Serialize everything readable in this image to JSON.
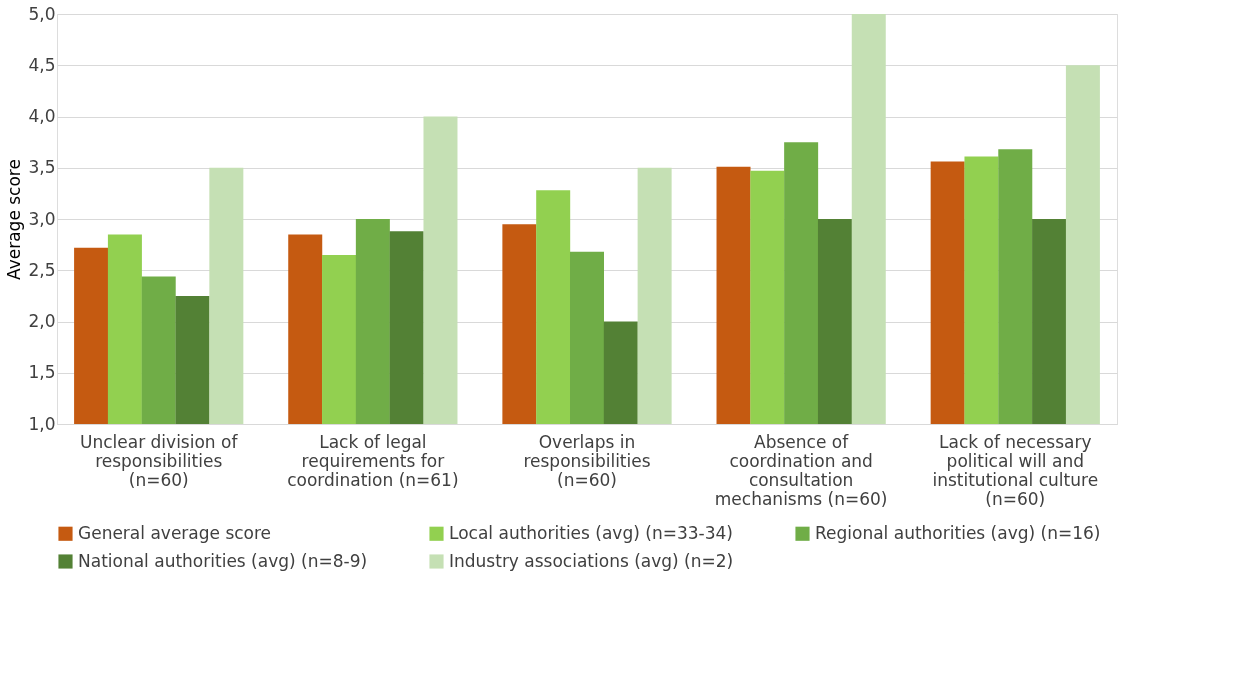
{
  "chart_data": {
    "type": "bar",
    "ylabel": "Average score",
    "categories": [
      "Unclear division of responsibilities (n=60)",
      "Lack of legal requirements for coordination (n=61)",
      "Overlaps in responsibilities (n=60)",
      "Absence of coordination and consultation mechanisms (n=60)",
      "Lack of necessary political will and institutional culture (n=60)"
    ],
    "series": [
      {
        "name": "General average score",
        "color": "#c55a11",
        "values": [
          2.72,
          2.85,
          2.95,
          3.51,
          3.56
        ]
      },
      {
        "name": "Local authorities (avg) (n=33-34)",
        "color": "#92d050",
        "values": [
          2.85,
          2.65,
          3.28,
          3.47,
          3.61
        ]
      },
      {
        "name": "Regional authorities (avg) (n=16)",
        "color": "#70ad47",
        "values": [
          2.44,
          3.0,
          2.68,
          3.75,
          3.68
        ]
      },
      {
        "name": "National authorities (avg) (n=8-9)",
        "color": "#538135",
        "values": [
          2.25,
          2.88,
          2.0,
          3.0,
          3.0
        ]
      },
      {
        "name": "Industry associations (avg) (n=2)",
        "color": "#c5e0b4",
        "values": [
          3.5,
          4.0,
          3.5,
          5.0,
          4.5
        ]
      }
    ],
    "ylim": [
      1,
      5
    ],
    "yticks": [
      {
        "value": 1,
        "label": "1,0"
      },
      {
        "value": 1.5,
        "label": "1,5"
      },
      {
        "value": 2,
        "label": "2,0"
      },
      {
        "value": 2.5,
        "label": "2,5"
      },
      {
        "value": 3,
        "label": "3,0"
      },
      {
        "value": 3.5,
        "label": "3,5"
      },
      {
        "value": 4,
        "label": "4,0"
      },
      {
        "value": 4.5,
        "label": "4,5"
      },
      {
        "value": 5,
        "label": "5,0"
      }
    ],
    "grid": "y",
    "legend": "bottom"
  }
}
